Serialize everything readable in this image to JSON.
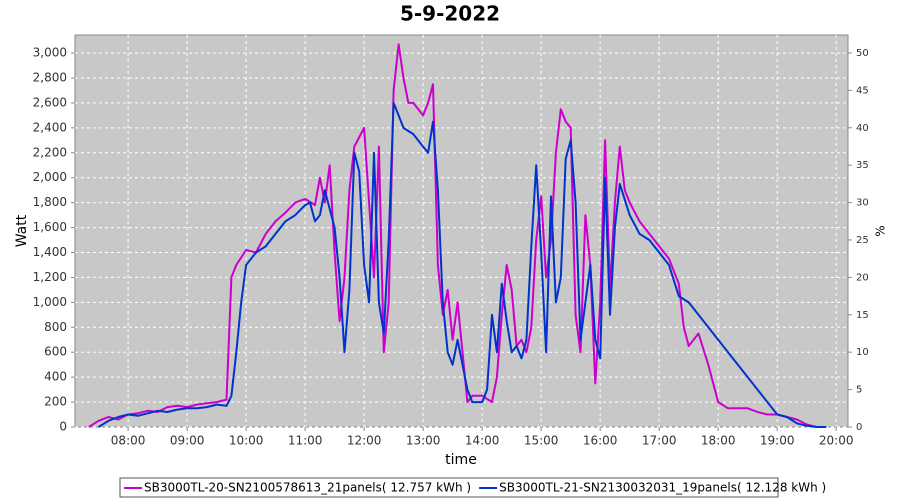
{
  "chart_data": {
    "type": "line",
    "title": "5-9-2022",
    "x_label": "time",
    "y_label": "Watt",
    "y2_label": "%",
    "xlim": [
      "07:06",
      "20:12"
    ],
    "xticks": [
      "08:00",
      "09:00",
      "10:00",
      "11:00",
      "12:00",
      "13:00",
      "14:00",
      "15:00",
      "16:00",
      "17:00",
      "18:00",
      "19:00",
      "20:00"
    ],
    "ylim": [
      0,
      3145
    ],
    "yticks": [
      0,
      200,
      400,
      600,
      800,
      {
        "value": 1000,
        "label": "1,000"
      },
      {
        "value": 1200,
        "label": "1,200"
      },
      {
        "value": 1400,
        "label": "1,400"
      },
      {
        "value": 1600,
        "label": "1,600"
      },
      {
        "value": 1800,
        "label": "1,800"
      },
      {
        "value": 2000,
        "label": "2,000"
      },
      {
        "value": 2200,
        "label": "2,200"
      },
      {
        "value": 2400,
        "label": "2,400"
      },
      {
        "value": 2600,
        "label": "2,600"
      },
      {
        "value": 2800,
        "label": "2,800"
      },
      {
        "value": 3000,
        "label": "3,000"
      }
    ],
    "y2lim": [
      0,
      52.4
    ],
    "y2ticks": [
      0,
      5,
      10,
      15,
      20,
      25,
      30,
      35,
      40,
      45,
      50
    ],
    "grid": true,
    "legend": "bottom",
    "series": [
      {
        "name": "SB3000TL-20-SN2100578613_21panels( 12.757 kWh )",
        "color": "#cc00cc",
        "x": [
          "07:20",
          "07:30",
          "07:40",
          "07:50",
          "08:00",
          "08:10",
          "08:20",
          "08:30",
          "08:40",
          "08:50",
          "09:00",
          "09:10",
          "09:20",
          "09:30",
          "09:40",
          "09:45",
          "09:50",
          "10:00",
          "10:10",
          "10:20",
          "10:30",
          "10:40",
          "10:50",
          "11:00",
          "11:10",
          "11:15",
          "11:20",
          "11:25",
          "11:30",
          "11:35",
          "11:40",
          "11:45",
          "11:50",
          "12:00",
          "12:05",
          "12:10",
          "12:15",
          "12:20",
          "12:25",
          "12:30",
          "12:35",
          "12:40",
          "12:45",
          "12:50",
          "13:00",
          "13:05",
          "13:10",
          "13:15",
          "13:20",
          "13:25",
          "13:30",
          "13:35",
          "13:40",
          "13:45",
          "13:50",
          "14:00",
          "14:10",
          "14:15",
          "14:20",
          "14:25",
          "14:30",
          "14:35",
          "14:40",
          "14:45",
          "14:50",
          "14:55",
          "15:00",
          "15:05",
          "15:10",
          "15:15",
          "15:20",
          "15:25",
          "15:30",
          "15:35",
          "15:40",
          "15:45",
          "15:50",
          "15:55",
          "16:00",
          "16:05",
          "16:10",
          "16:15",
          "16:20",
          "16:25",
          "16:30",
          "16:40",
          "16:50",
          "17:00",
          "17:10",
          "17:20",
          "17:25",
          "17:30",
          "17:40",
          "17:50",
          "18:00",
          "18:10",
          "18:20",
          "18:30",
          "18:40",
          "18:50",
          "19:00",
          "19:10",
          "19:20",
          "19:30",
          "19:40"
        ],
        "values": [
          0,
          50,
          80,
          60,
          100,
          110,
          130,
          120,
          160,
          170,
          160,
          180,
          190,
          200,
          220,
          1200,
          1300,
          1420,
          1400,
          1550,
          1650,
          1720,
          1800,
          1830,
          1780,
          2000,
          1800,
          2100,
          1400,
          850,
          1200,
          1900,
          2250,
          2400,
          1800,
          1200,
          2250,
          600,
          1000,
          2700,
          3070,
          2800,
          2600,
          2600,
          2500,
          2600,
          2750,
          1300,
          900,
          1100,
          700,
          1000,
          600,
          200,
          250,
          250,
          200,
          400,
          900,
          1300,
          1100,
          650,
          700,
          600,
          800,
          1500,
          1850,
          1200,
          1500,
          2200,
          2550,
          2450,
          2400,
          900,
          600,
          1700,
          1300,
          350,
          1000,
          2300,
          1100,
          1800,
          2250,
          1900,
          1800,
          1650,
          1550,
          1450,
          1350,
          1150,
          800,
          650,
          750,
          500,
          200,
          150,
          150,
          150,
          120,
          100,
          100,
          80,
          60,
          20,
          0
        ]
      },
      {
        "name": "SB3000TL-21-SN2130032031_19panels( 12.128 kWh )",
        "color": "#0033cc",
        "x": [
          "07:30",
          "07:40",
          "07:50",
          "08:00",
          "08:10",
          "08:20",
          "08:30",
          "08:40",
          "08:50",
          "09:00",
          "09:10",
          "09:20",
          "09:30",
          "09:40",
          "09:45",
          "09:50",
          "09:55",
          "10:00",
          "10:10",
          "10:20",
          "10:30",
          "10:40",
          "10:50",
          "11:00",
          "11:05",
          "11:10",
          "11:15",
          "11:20",
          "11:25",
          "11:30",
          "11:35",
          "11:40",
          "11:45",
          "11:50",
          "11:55",
          "12:00",
          "12:05",
          "12:10",
          "12:15",
          "12:20",
          "12:25",
          "12:30",
          "12:35",
          "12:40",
          "12:50",
          "13:00",
          "13:05",
          "13:10",
          "13:15",
          "13:20",
          "13:25",
          "13:30",
          "13:35",
          "13:40",
          "13:45",
          "13:50",
          "14:00",
          "14:05",
          "14:10",
          "14:15",
          "14:20",
          "14:25",
          "14:30",
          "14:35",
          "14:40",
          "14:45",
          "14:50",
          "14:55",
          "15:00",
          "15:05",
          "15:10",
          "15:15",
          "15:20",
          "15:25",
          "15:30",
          "15:35",
          "15:40",
          "15:45",
          "15:50",
          "15:55",
          "16:00",
          "16:05",
          "16:10",
          "16:15",
          "16:20",
          "16:30",
          "16:40",
          "16:50",
          "17:00",
          "17:10",
          "17:20",
          "17:30",
          "17:40",
          "17:50",
          "18:00",
          "18:10",
          "18:20",
          "18:30",
          "18:40",
          "18:50",
          "19:00",
          "19:10",
          "19:20",
          "19:30",
          "19:40",
          "19:50"
        ],
        "values": [
          0,
          50,
          80,
          100,
          90,
          110,
          130,
          120,
          140,
          150,
          150,
          160,
          180,
          170,
          250,
          600,
          1000,
          1300,
          1400,
          1450,
          1550,
          1650,
          1700,
          1780,
          1800,
          1650,
          1700,
          1900,
          1750,
          1600,
          1200,
          600,
          1100,
          2200,
          2050,
          1300,
          1000,
          2200,
          1000,
          750,
          1500,
          2600,
          2500,
          2400,
          2350,
          2250,
          2200,
          2450,
          1900,
          1000,
          600,
          500,
          700,
          500,
          300,
          200,
          200,
          300,
          900,
          600,
          1150,
          850,
          600,
          650,
          550,
          700,
          1450,
          2100,
          1400,
          600,
          1850,
          1000,
          1200,
          2150,
          2300,
          1800,
          700,
          1000,
          1300,
          700,
          550,
          2000,
          900,
          1600,
          1950,
          1700,
          1550,
          1500,
          1400,
          1300,
          1050,
          1000,
          900,
          800,
          700,
          600,
          500,
          400,
          300,
          200,
          100,
          80,
          30,
          10,
          0,
          0
        ]
      }
    ]
  }
}
